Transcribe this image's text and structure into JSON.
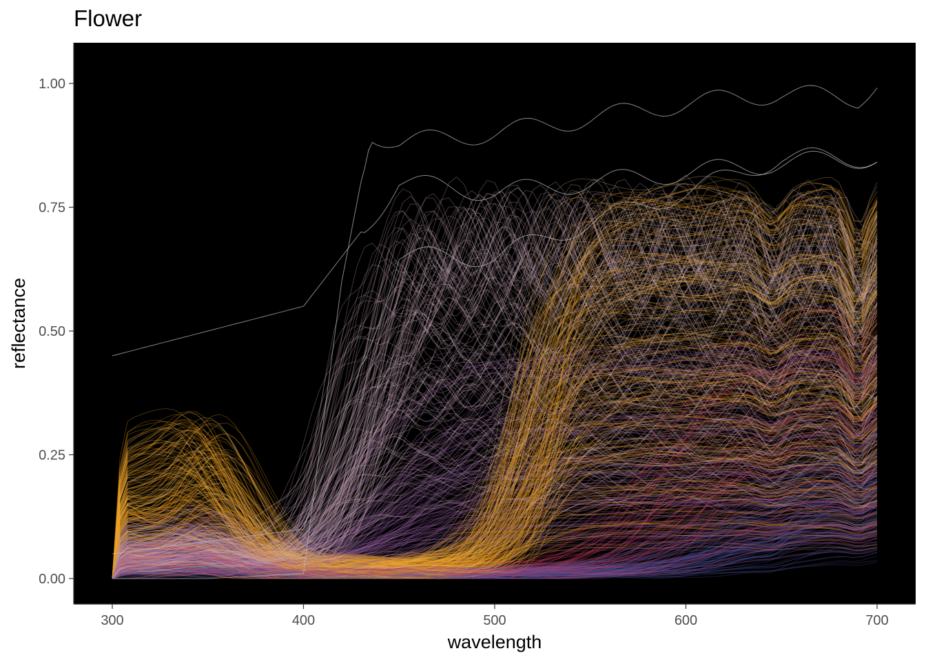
{
  "chart_data": {
    "type": "line",
    "title": "Flower",
    "xlabel": "wavelength",
    "ylabel": "reflectance",
    "xlim": [
      280,
      1320
    ],
    "ylim": [
      -0.05,
      1.07
    ],
    "x_ticks": [
      300,
      400,
      500,
      600,
      700
    ],
    "y_ticks": [
      0.0,
      0.25,
      0.5,
      0.75,
      1.0
    ],
    "y_tick_labels": [
      "0.00",
      "0.25",
      "0.50",
      "0.75",
      "1.00"
    ],
    "x_range_data": [
      300,
      700
    ],
    "panel_background": "#000000",
    "grid": false,
    "legend": "none",
    "n_series_approx": 1000,
    "series_colors": [
      "#e89a1c",
      "#c9a8b8",
      "#8c5a9c",
      "#cc3f5e",
      "#4a4f9a",
      "#f0c070"
    ],
    "representative_series": [
      {
        "x": [
          300,
          350,
          400,
          420,
          435,
          450,
          500,
          550,
          600,
          650,
          690,
          700
        ],
        "values": [
          0.0,
          0.0,
          0.01,
          0.6,
          0.9,
          0.88,
          0.9,
          0.93,
          0.96,
          0.98,
          0.97,
          1.0
        ]
      },
      {
        "x": [
          300,
          400,
          450,
          500,
          550,
          600,
          650,
          700
        ],
        "values": [
          0.45,
          0.55,
          0.8,
          0.78,
          0.8,
          0.82,
          0.84,
          0.85
        ]
      },
      {
        "x": [
          300,
          400,
          450,
          500,
          550,
          600,
          650,
          700
        ],
        "values": [
          0.05,
          0.1,
          0.65,
          0.65,
          0.72,
          0.78,
          0.85,
          0.85
        ]
      }
    ]
  }
}
